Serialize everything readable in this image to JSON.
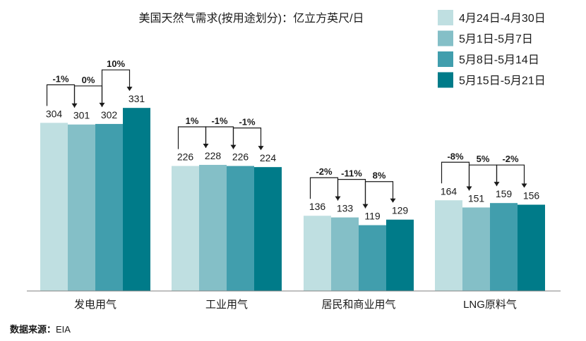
{
  "chart_data": {
    "type": "bar",
    "title": "美国天然气需求(按用途划分)：亿立方英尺/日",
    "categories": [
      "发电用气",
      "工业用气",
      "居民和商业用气",
      "LNG原料气"
    ],
    "series": [
      {
        "name": "4月24日-4月30日",
        "values": [
          304,
          226,
          136,
          164
        ],
        "color": "#bfdfe1"
      },
      {
        "name": "5月1日-5月7日",
        "values": [
          301,
          228,
          133,
          151
        ],
        "color": "#84bfc7"
      },
      {
        "name": "5月8日-5月14日",
        "values": [
          302,
          226,
          119,
          159
        ],
        "color": "#419ead"
      },
      {
        "name": "5月15日-5月21日",
        "values": [
          331,
          224,
          129,
          156
        ],
        "color": "#007b89"
      }
    ],
    "changes": [
      [
        "-1%",
        "0%",
        "10%"
      ],
      [
        "1%",
        "-1%",
        "-1%"
      ],
      [
        "-2%",
        "-11%",
        "8%"
      ],
      [
        "-8%",
        "5%",
        "-2%"
      ]
    ],
    "ylim": [
      0,
      400
    ],
    "grid": false,
    "legend": "top-right"
  },
  "source": {
    "label": "数据来源：",
    "value": "EIA"
  }
}
